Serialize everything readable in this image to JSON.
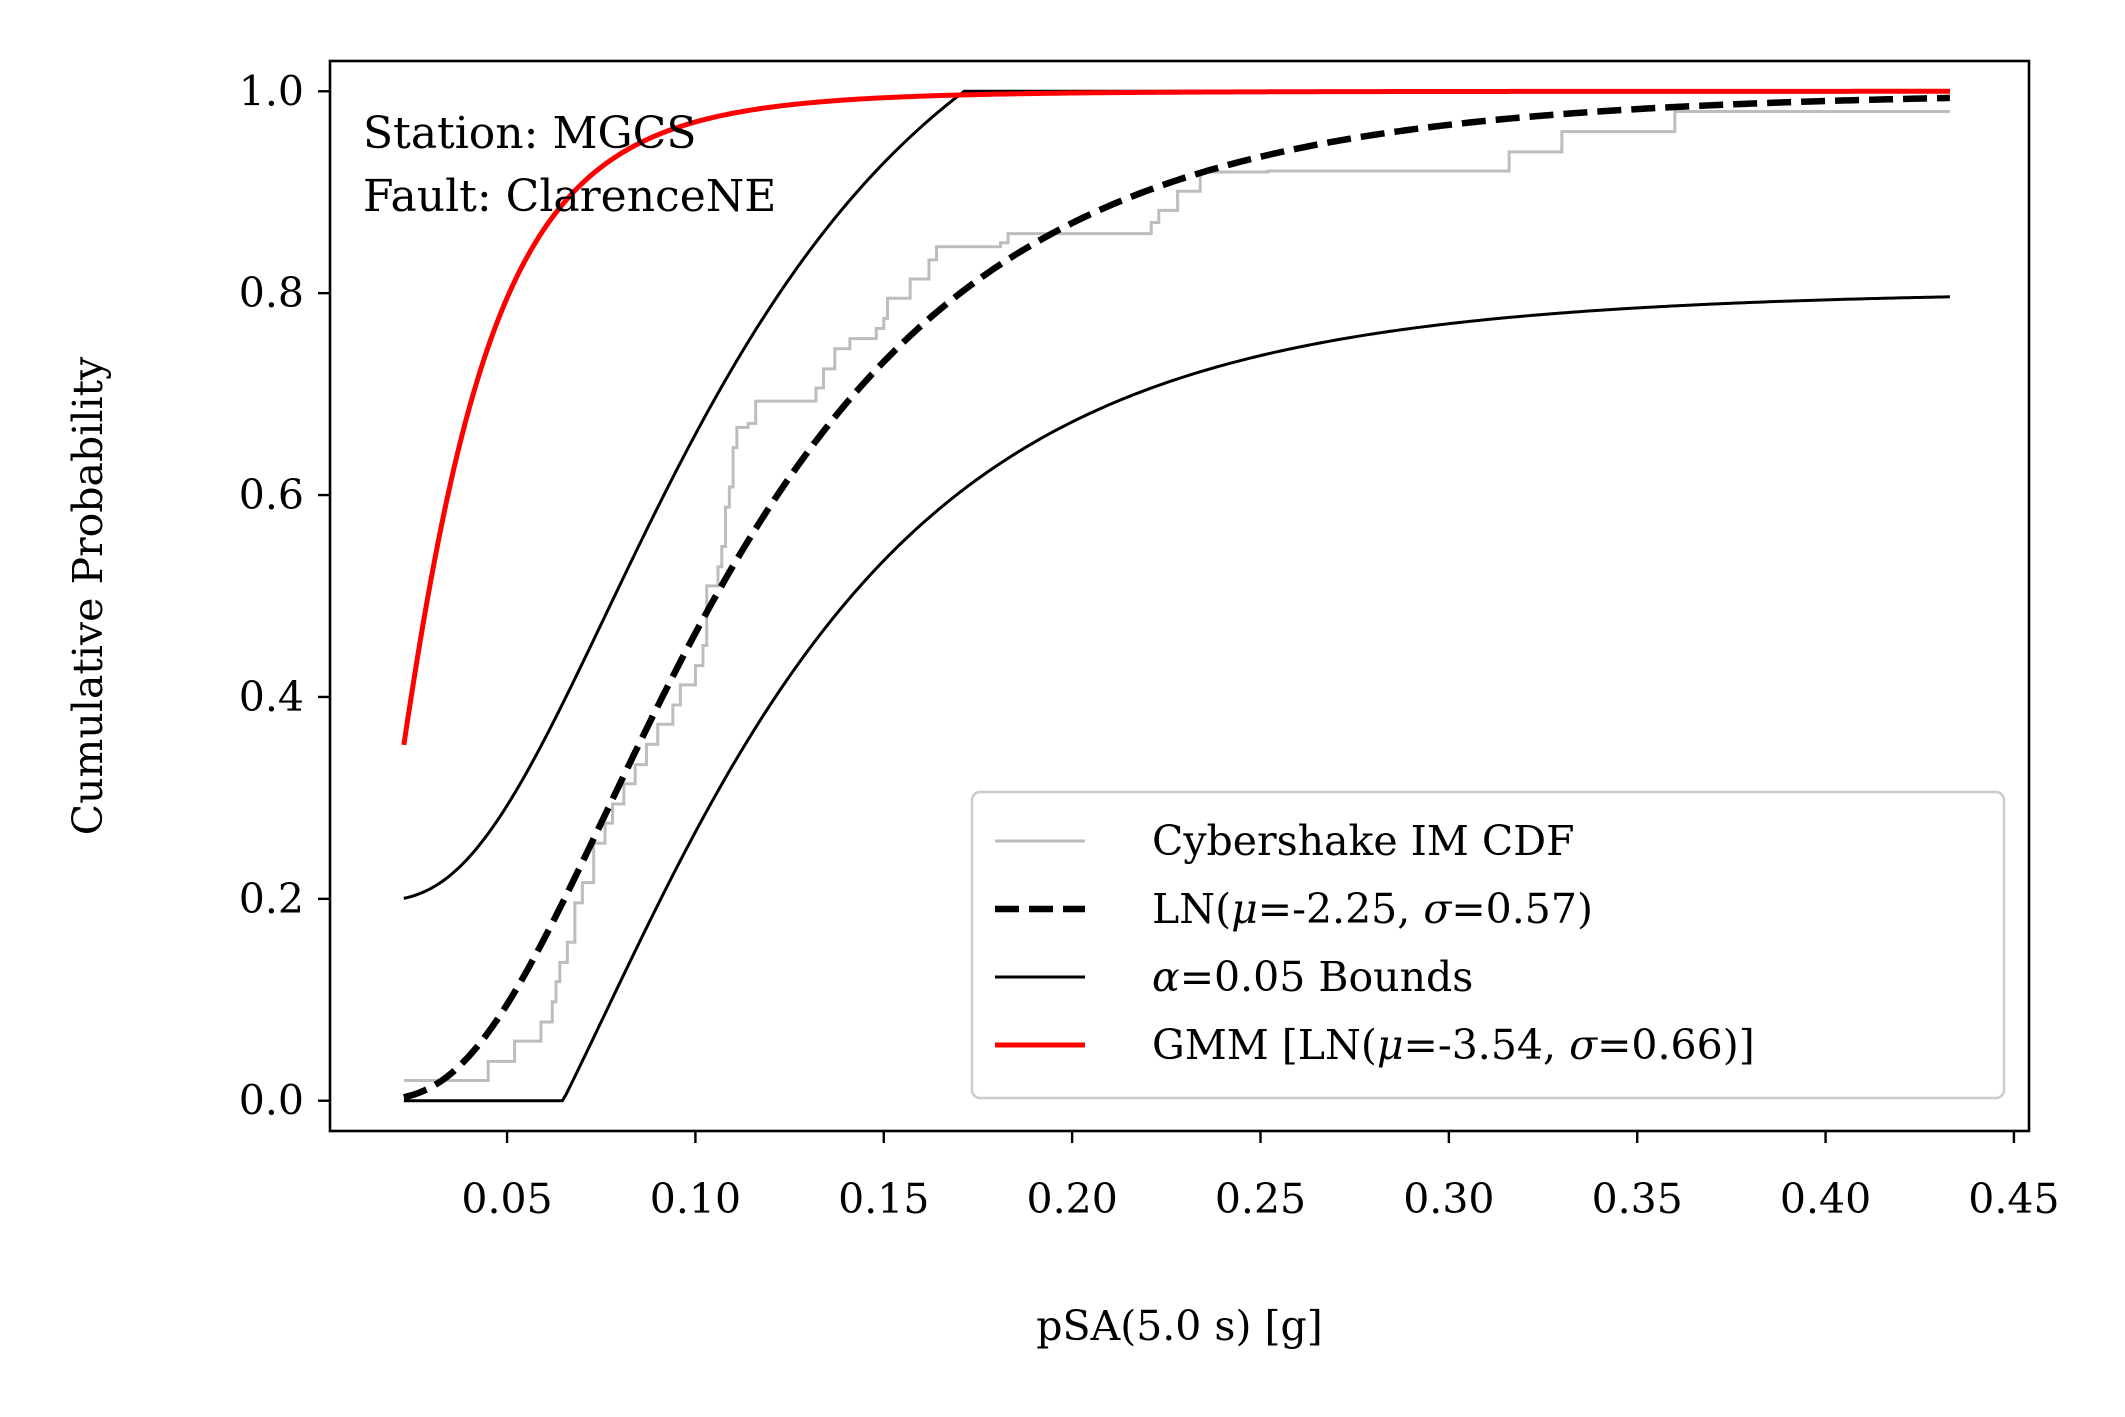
{
  "chart_data": {
    "type": "line",
    "annotation": [
      "Station: MGCS",
      "Fault: ClarenceNE"
    ],
    "xlabel": "pSA(5.0 s) [g]",
    "ylabel": "Cumulative Probability",
    "xlim": [
      0.003,
      0.454
    ],
    "ylim": [
      -0.03,
      1.03
    ],
    "xticks": [
      0.05,
      0.1,
      0.15,
      0.2,
      0.25,
      0.3,
      0.35,
      0.4,
      0.45
    ],
    "xtick_labels": [
      "0.05",
      "0.10",
      "0.15",
      "0.20",
      "0.25",
      "0.30",
      "0.35",
      "0.40",
      "0.45"
    ],
    "yticks": [
      0.0,
      0.2,
      0.4,
      0.6,
      0.8,
      1.0
    ],
    "ytick_labels": [
      "0.0",
      "0.2",
      "0.4",
      "0.6",
      "0.8",
      "1.0"
    ],
    "grid": false,
    "legend_position": "lower-right",
    "x_range": [
      0.0226,
      0.433
    ],
    "series": [
      {
        "name": "Cybershake IM CDF",
        "kind": "empirical-step",
        "color": "#bdbdbd",
        "x": [
          0.0226,
          0.045,
          0.052,
          0.059,
          0.062,
          0.063,
          0.064,
          0.066,
          0.068,
          0.07,
          0.073,
          0.076,
          0.078,
          0.081,
          0.084,
          0.087,
          0.09,
          0.094,
          0.096,
          0.1,
          0.102,
          0.103,
          0.106,
          0.107,
          0.108,
          0.109,
          0.11,
          0.111,
          0.114,
          0.116,
          0.132,
          0.134,
          0.137,
          0.141,
          0.148,
          0.15,
          0.151,
          0.157,
          0.162,
          0.164,
          0.181,
          0.183,
          0.221,
          0.223,
          0.228,
          0.234,
          0.252,
          0.316,
          0.33,
          0.36,
          0.433
        ],
        "y": [
          0.02,
          0.039,
          0.059,
          0.078,
          0.098,
          0.118,
          0.137,
          0.157,
          0.196,
          0.216,
          0.255,
          0.275,
          0.294,
          0.314,
          0.333,
          0.353,
          0.373,
          0.392,
          0.412,
          0.431,
          0.451,
          0.51,
          0.529,
          0.549,
          0.588,
          0.608,
          0.647,
          0.667,
          0.671,
          0.693,
          0.706,
          0.725,
          0.745,
          0.755,
          0.765,
          0.775,
          0.795,
          0.814,
          0.833,
          0.846,
          0.85,
          0.859,
          0.87,
          0.882,
          0.901,
          0.92,
          0.921,
          0.94,
          0.96,
          0.98,
          0.98
        ]
      },
      {
        "name": "LN(μ=-2.25, σ=0.57)",
        "legend_parts": [
          [
            "LN(",
            "n"
          ],
          [
            "μ",
            "i"
          ],
          [
            "=-2.25, ",
            "n"
          ],
          [
            "σ",
            "i"
          ],
          [
            "=0.57)",
            "n"
          ]
        ],
        "kind": "lognormal-cdf",
        "mu": -2.25,
        "sigma": 0.57,
        "color": "#000000",
        "dashed": true
      },
      {
        "name": "α=0.05 Bounds",
        "legend_parts": [
          [
            "α",
            "i"
          ],
          [
            "=0.05 Bounds",
            "n"
          ]
        ],
        "kind": "band",
        "offset": 0.197,
        "mu": -2.25,
        "sigma": 0.57,
        "color": "#000000"
      },
      {
        "name": "GMM [LN(μ=-3.54, σ=0.66)]",
        "legend_parts": [
          [
            "GMM [LN(",
            "n"
          ],
          [
            "μ",
            "i"
          ],
          [
            "=-3.54, ",
            "n"
          ],
          [
            "σ",
            "i"
          ],
          [
            "=0.66)]",
            "n"
          ]
        ],
        "kind": "lognormal-cdf",
        "mu": -3.54,
        "sigma": 0.66,
        "color": "#ff0000"
      }
    ]
  }
}
